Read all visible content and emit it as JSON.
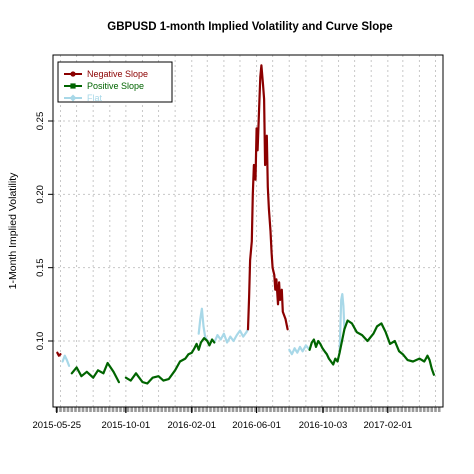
{
  "chart_data": {
    "type": "line",
    "title": "GBPUSD 1-month Implied Volatility and Curve Slope",
    "xlabel": "",
    "ylabel": "1-Month Implied Volatility",
    "ylim": [
      0.055,
      0.295
    ],
    "yticks": [
      0.1,
      0.15,
      0.2,
      0.25
    ],
    "ytick_labels": [
      "0.10",
      "0.15",
      "0.20",
      "0.25"
    ],
    "x_range": [
      "2015-05-18",
      "2017-05-15"
    ],
    "xtick_labels": [
      "2015-05-25",
      "2015-10-01",
      "2016-02-01",
      "2016-06-01",
      "2016-10-03",
      "2017-02-01"
    ],
    "grid": true,
    "legend_position": "top-left",
    "colors": {
      "Negative Slope": "#8b0000",
      "Positive Slope": "#006400",
      "Flat": "#a8d8e8"
    },
    "legend": [
      "Negative Slope",
      "Positive Slope",
      "Flat"
    ],
    "series": [
      {
        "name": "Negative Slope",
        "points": [
          [
            "2015-05-26",
            0.092
          ],
          [
            "2015-05-29",
            0.09
          ],
          [
            "2015-06-01",
            0.091
          ],
          [
            "2016-05-16",
            0.108
          ],
          [
            "2016-05-18",
            0.13
          ],
          [
            "2016-05-20",
            0.155
          ],
          [
            "2016-05-23",
            0.168
          ],
          [
            "2016-05-25",
            0.2
          ],
          [
            "2016-05-27",
            0.22
          ],
          [
            "2016-05-30",
            0.21
          ],
          [
            "2016-06-01",
            0.245
          ],
          [
            "2016-06-03",
            0.23
          ],
          [
            "2016-06-06",
            0.262
          ],
          [
            "2016-06-08",
            0.28
          ],
          [
            "2016-06-10",
            0.288
          ],
          [
            "2016-06-13",
            0.275
          ],
          [
            "2016-06-15",
            0.265
          ],
          [
            "2016-06-17",
            0.22
          ],
          [
            "2016-06-20",
            0.24
          ],
          [
            "2016-06-22",
            0.205
          ],
          [
            "2016-06-24",
            0.19
          ],
          [
            "2016-06-27",
            0.175
          ],
          [
            "2016-06-29",
            0.16
          ],
          [
            "2016-07-01",
            0.15
          ],
          [
            "2016-07-04",
            0.145
          ],
          [
            "2016-07-06",
            0.135
          ],
          [
            "2016-07-08",
            0.142
          ],
          [
            "2016-07-11",
            0.125
          ],
          [
            "2016-07-13",
            0.14
          ],
          [
            "2016-07-15",
            0.128
          ],
          [
            "2016-07-18",
            0.135
          ],
          [
            "2016-07-20",
            0.12
          ],
          [
            "2016-07-25",
            0.115
          ],
          [
            "2016-07-29",
            0.108
          ]
        ]
      },
      {
        "name": "Positive Slope",
        "points": [
          [
            "2015-06-22",
            0.078
          ],
          [
            "2015-07-01",
            0.082
          ],
          [
            "2015-07-10",
            0.076
          ],
          [
            "2015-07-20",
            0.079
          ],
          [
            "2015-08-01",
            0.075
          ],
          [
            "2015-08-10",
            0.08
          ],
          [
            "2015-08-20",
            0.078
          ],
          [
            "2015-08-28",
            0.085
          ],
          [
            "2015-09-08",
            0.079
          ],
          [
            "2015-09-18",
            0.072
          ],
          [
            "2015-10-01",
            0.075
          ],
          [
            "2015-10-10",
            0.073
          ],
          [
            "2015-10-20",
            0.078
          ],
          [
            "2015-11-01",
            0.072
          ],
          [
            "2015-11-10",
            0.071
          ],
          [
            "2015-11-20",
            0.075
          ],
          [
            "2015-12-01",
            0.076
          ],
          [
            "2015-12-10",
            0.073
          ],
          [
            "2015-12-20",
            0.074
          ],
          [
            "2016-01-01",
            0.08
          ],
          [
            "2016-01-10",
            0.086
          ],
          [
            "2016-01-20",
            0.088
          ],
          [
            "2016-01-26",
            0.091
          ],
          [
            "2016-02-01",
            0.092
          ],
          [
            "2016-02-06",
            0.095
          ],
          [
            "2016-02-10",
            0.098
          ],
          [
            "2016-02-14",
            0.094
          ],
          [
            "2016-02-18",
            0.099
          ],
          [
            "2016-02-24",
            0.102
          ],
          [
            "2016-03-01",
            0.1
          ],
          [
            "2016-03-05",
            0.097
          ],
          [
            "2016-03-10",
            0.101
          ],
          [
            "2016-03-14",
            0.099
          ],
          [
            "2016-09-08",
            0.094
          ],
          [
            "2016-09-12",
            0.099
          ],
          [
            "2016-09-16",
            0.101
          ],
          [
            "2016-09-20",
            0.096
          ],
          [
            "2016-09-24",
            0.1
          ],
          [
            "2016-09-28",
            0.098
          ],
          [
            "2016-10-02",
            0.095
          ],
          [
            "2016-10-06",
            0.093
          ],
          [
            "2016-10-10",
            0.091
          ],
          [
            "2016-10-14",
            0.088
          ],
          [
            "2016-10-18",
            0.086
          ],
          [
            "2016-10-22",
            0.084
          ],
          [
            "2016-10-26",
            0.088
          ],
          [
            "2016-10-30",
            0.086
          ],
          [
            "2016-11-03",
            0.092
          ],
          [
            "2016-11-12",
            0.108
          ],
          [
            "2016-11-18",
            0.114
          ],
          [
            "2016-11-26",
            0.112
          ],
          [
            "2016-12-05",
            0.106
          ],
          [
            "2016-12-15",
            0.104
          ],
          [
            "2016-12-25",
            0.1
          ],
          [
            "2017-01-05",
            0.105
          ],
          [
            "2017-01-12",
            0.11
          ],
          [
            "2017-01-20",
            0.112
          ],
          [
            "2017-01-28",
            0.106
          ],
          [
            "2017-02-05",
            0.098
          ],
          [
            "2017-02-14",
            0.1
          ],
          [
            "2017-02-22",
            0.093
          ],
          [
            "2017-03-01",
            0.091
          ],
          [
            "2017-03-10",
            0.087
          ],
          [
            "2017-03-20",
            0.086
          ],
          [
            "2017-04-01",
            0.088
          ],
          [
            "2017-04-10",
            0.086
          ],
          [
            "2017-04-16",
            0.09
          ],
          [
            "2017-04-20",
            0.087
          ],
          [
            "2017-04-24",
            0.081
          ],
          [
            "2017-04-28",
            0.077
          ]
        ]
      },
      {
        "name": "Flat",
        "points": [
          [
            "2015-06-05",
            0.086
          ],
          [
            "2015-06-09",
            0.09
          ],
          [
            "2015-06-13",
            0.087
          ],
          [
            "2015-06-17",
            0.083
          ],
          [
            "2016-02-14",
            0.105
          ],
          [
            "2016-02-17",
            0.115
          ],
          [
            "2016-02-20",
            0.122
          ],
          [
            "2016-02-23",
            0.11
          ],
          [
            "2016-02-26",
            0.103
          ],
          [
            "2016-03-01",
            0.1
          ],
          [
            "2016-03-14",
            0.099
          ],
          [
            "2016-03-20",
            0.104
          ],
          [
            "2016-03-26",
            0.101
          ],
          [
            "2016-04-01",
            0.105
          ],
          [
            "2016-04-07",
            0.099
          ],
          [
            "2016-04-13",
            0.103
          ],
          [
            "2016-04-19",
            0.1
          ],
          [
            "2016-04-25",
            0.104
          ],
          [
            "2016-05-01",
            0.107
          ],
          [
            "2016-05-07",
            0.103
          ],
          [
            "2016-05-13",
            0.106
          ],
          [
            "2016-05-16",
            0.108
          ],
          [
            "2016-08-01",
            0.094
          ],
          [
            "2016-08-06",
            0.091
          ],
          [
            "2016-08-11",
            0.095
          ],
          [
            "2016-08-16",
            0.092
          ],
          [
            "2016-08-21",
            0.096
          ],
          [
            "2016-08-26",
            0.093
          ],
          [
            "2016-09-01",
            0.097
          ],
          [
            "2016-09-08",
            0.094
          ],
          [
            "2016-10-10",
            0.091
          ],
          [
            "2016-10-14",
            0.088
          ],
          [
            "2016-11-03",
            0.092
          ],
          [
            "2016-11-06",
            0.128
          ],
          [
            "2016-11-08",
            0.132
          ],
          [
            "2016-11-10",
            0.124
          ],
          [
            "2016-11-12",
            0.108
          ]
        ]
      }
    ]
  }
}
